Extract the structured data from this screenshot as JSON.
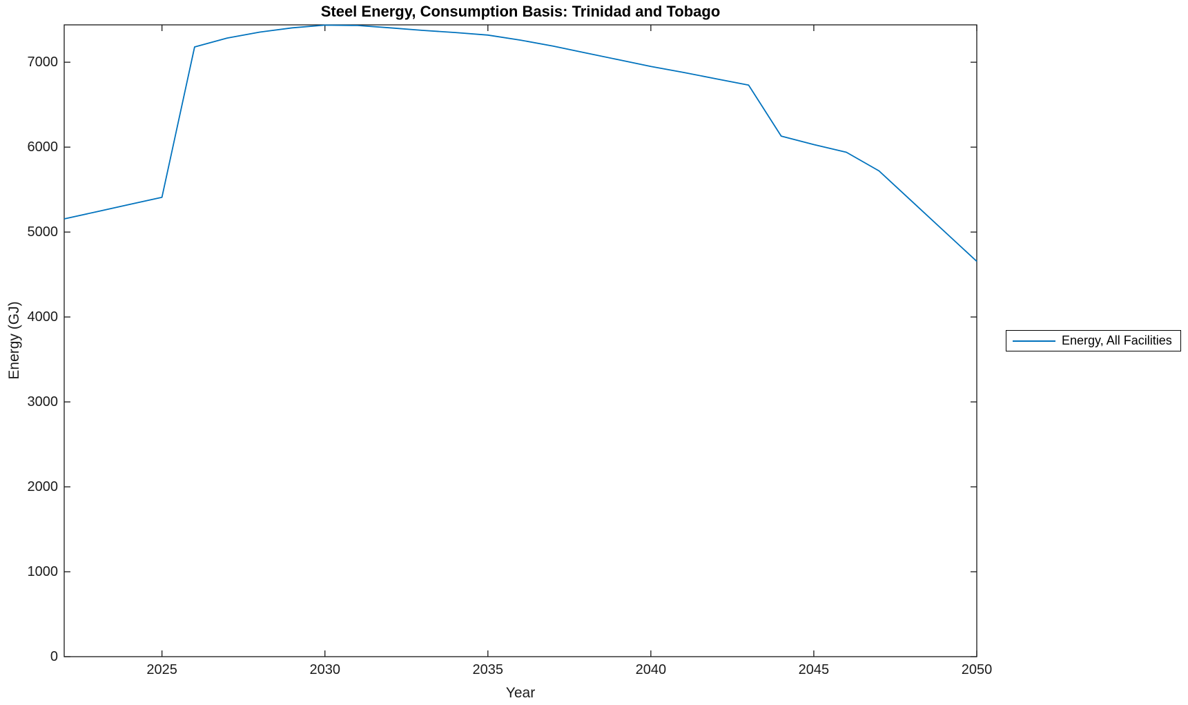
{
  "chart_data": {
    "type": "line",
    "title": "Steel Energy, Consumption Basis: Trinidad and Tobago",
    "xlabel": "Year",
    "ylabel": "Energy (GJ)",
    "xlim": [
      2022,
      2050
    ],
    "ylim": [
      0,
      7440
    ],
    "xticks": [
      2025,
      2030,
      2035,
      2040,
      2045,
      2050
    ],
    "yticks": [
      0,
      1000,
      2000,
      3000,
      4000,
      5000,
      6000,
      7000
    ],
    "grid": false,
    "box": true,
    "axis_color": "#151515",
    "legend": {
      "position": "outside-right",
      "border_color": "#000000",
      "entries": [
        "Energy, All Facilities"
      ]
    },
    "series": [
      {
        "name": "Energy, All Facilities",
        "color": "#0072BD",
        "x": [
          2022,
          2023,
          2024,
          2025,
          2026,
          2027,
          2028,
          2029,
          2030,
          2031,
          2032,
          2033,
          2034,
          2035,
          2036,
          2037,
          2038,
          2039,
          2040,
          2041,
          2042,
          2043,
          2044,
          2045,
          2046,
          2047,
          2048,
          2049,
          2050
        ],
        "y": [
          5155,
          5240,
          5325,
          5410,
          7180,
          7285,
          7355,
          7405,
          7437,
          7433,
          7405,
          7375,
          7350,
          7320,
          7260,
          7190,
          7110,
          7030,
          6950,
          6880,
          6805,
          6730,
          6130,
          6030,
          5940,
          5720,
          5365,
          5010,
          4655
        ]
      }
    ]
  }
}
